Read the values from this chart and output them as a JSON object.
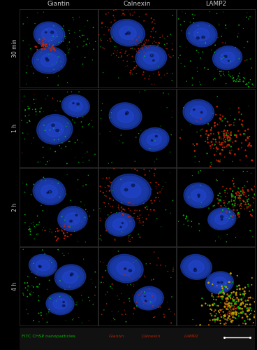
{
  "col_labels": [
    "Giantin",
    "Calnexin",
    "LAMP2"
  ],
  "row_labels": [
    "30 min",
    "1 h",
    "2 h",
    "4 h"
  ],
  "n_rows": 4,
  "n_cols": 3,
  "col_label_color": "#cccccc",
  "row_label_color": "#cccccc",
  "col_label_fontsize": 6.5,
  "row_label_fontsize": 5.5,
  "legend_text": "FITC CHSP nanoparticles",
  "legend_giantin": "Giantin",
  "legend_calnexin": "Calnexin",
  "legend_lamp2": "LAMP2",
  "legend_fontsize": 4.5,
  "figure_bg": "#000000",
  "nucleus_color": "#1a3aaa",
  "nucleus_edge": "#3355cc",
  "green_color": "#00cc00",
  "red_color": "#cc2200",
  "yellow_color": "#ccaa00"
}
